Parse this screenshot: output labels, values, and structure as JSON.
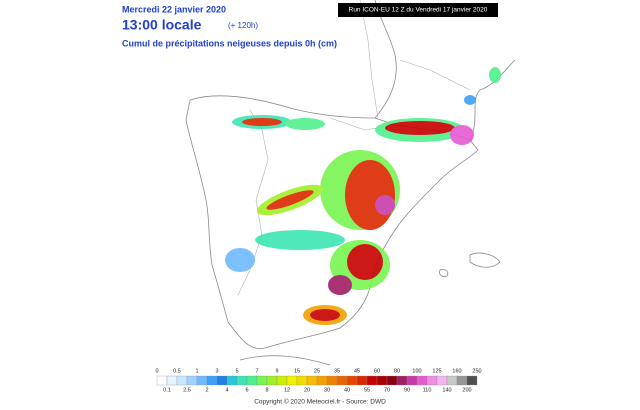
{
  "header": {
    "date": "Mercredi 22 janvier 2020",
    "time": "13:00 locale",
    "lead": "(+ 120h)",
    "field": "Cumul de précipitations neigeuses depuis 0h (cm)",
    "run": "Run ICON-EU 12 Z du Vendredi 17 janvier 2020"
  },
  "legend": {
    "upper_labels": [
      0,
      0.5,
      1,
      3,
      5,
      7,
      9,
      15,
      25,
      35,
      45,
      60,
      80,
      100,
      125,
      160,
      250
    ],
    "lower_labels": [
      0.1,
      2.5,
      2,
      4,
      6,
      8,
      12,
      20,
      30,
      40,
      55,
      70,
      90,
      110,
      140,
      200
    ],
    "colors": [
      "#ffffff",
      "#e6f4ff",
      "#c8e6ff",
      "#a0d2ff",
      "#6eb9ff",
      "#3ca0f5",
      "#1e82e6",
      "#28c8dc",
      "#3ce6b4",
      "#50f08c",
      "#78f550",
      "#a0f028",
      "#c8f000",
      "#f0f000",
      "#f5dc00",
      "#f5be00",
      "#f5a000",
      "#f08200",
      "#eb6400",
      "#e64600",
      "#dc2800",
      "#c80000",
      "#aa0000",
      "#8c0014",
      "#a01e64",
      "#c83caa",
      "#e65ad2",
      "#f08ce6",
      "#f5b4f0",
      "#c8c8c8",
      "#969696",
      "#505050"
    ]
  },
  "footer": {
    "copyright": "Copyright © 2020 Meteociel.fr - Source: DWD"
  }
}
